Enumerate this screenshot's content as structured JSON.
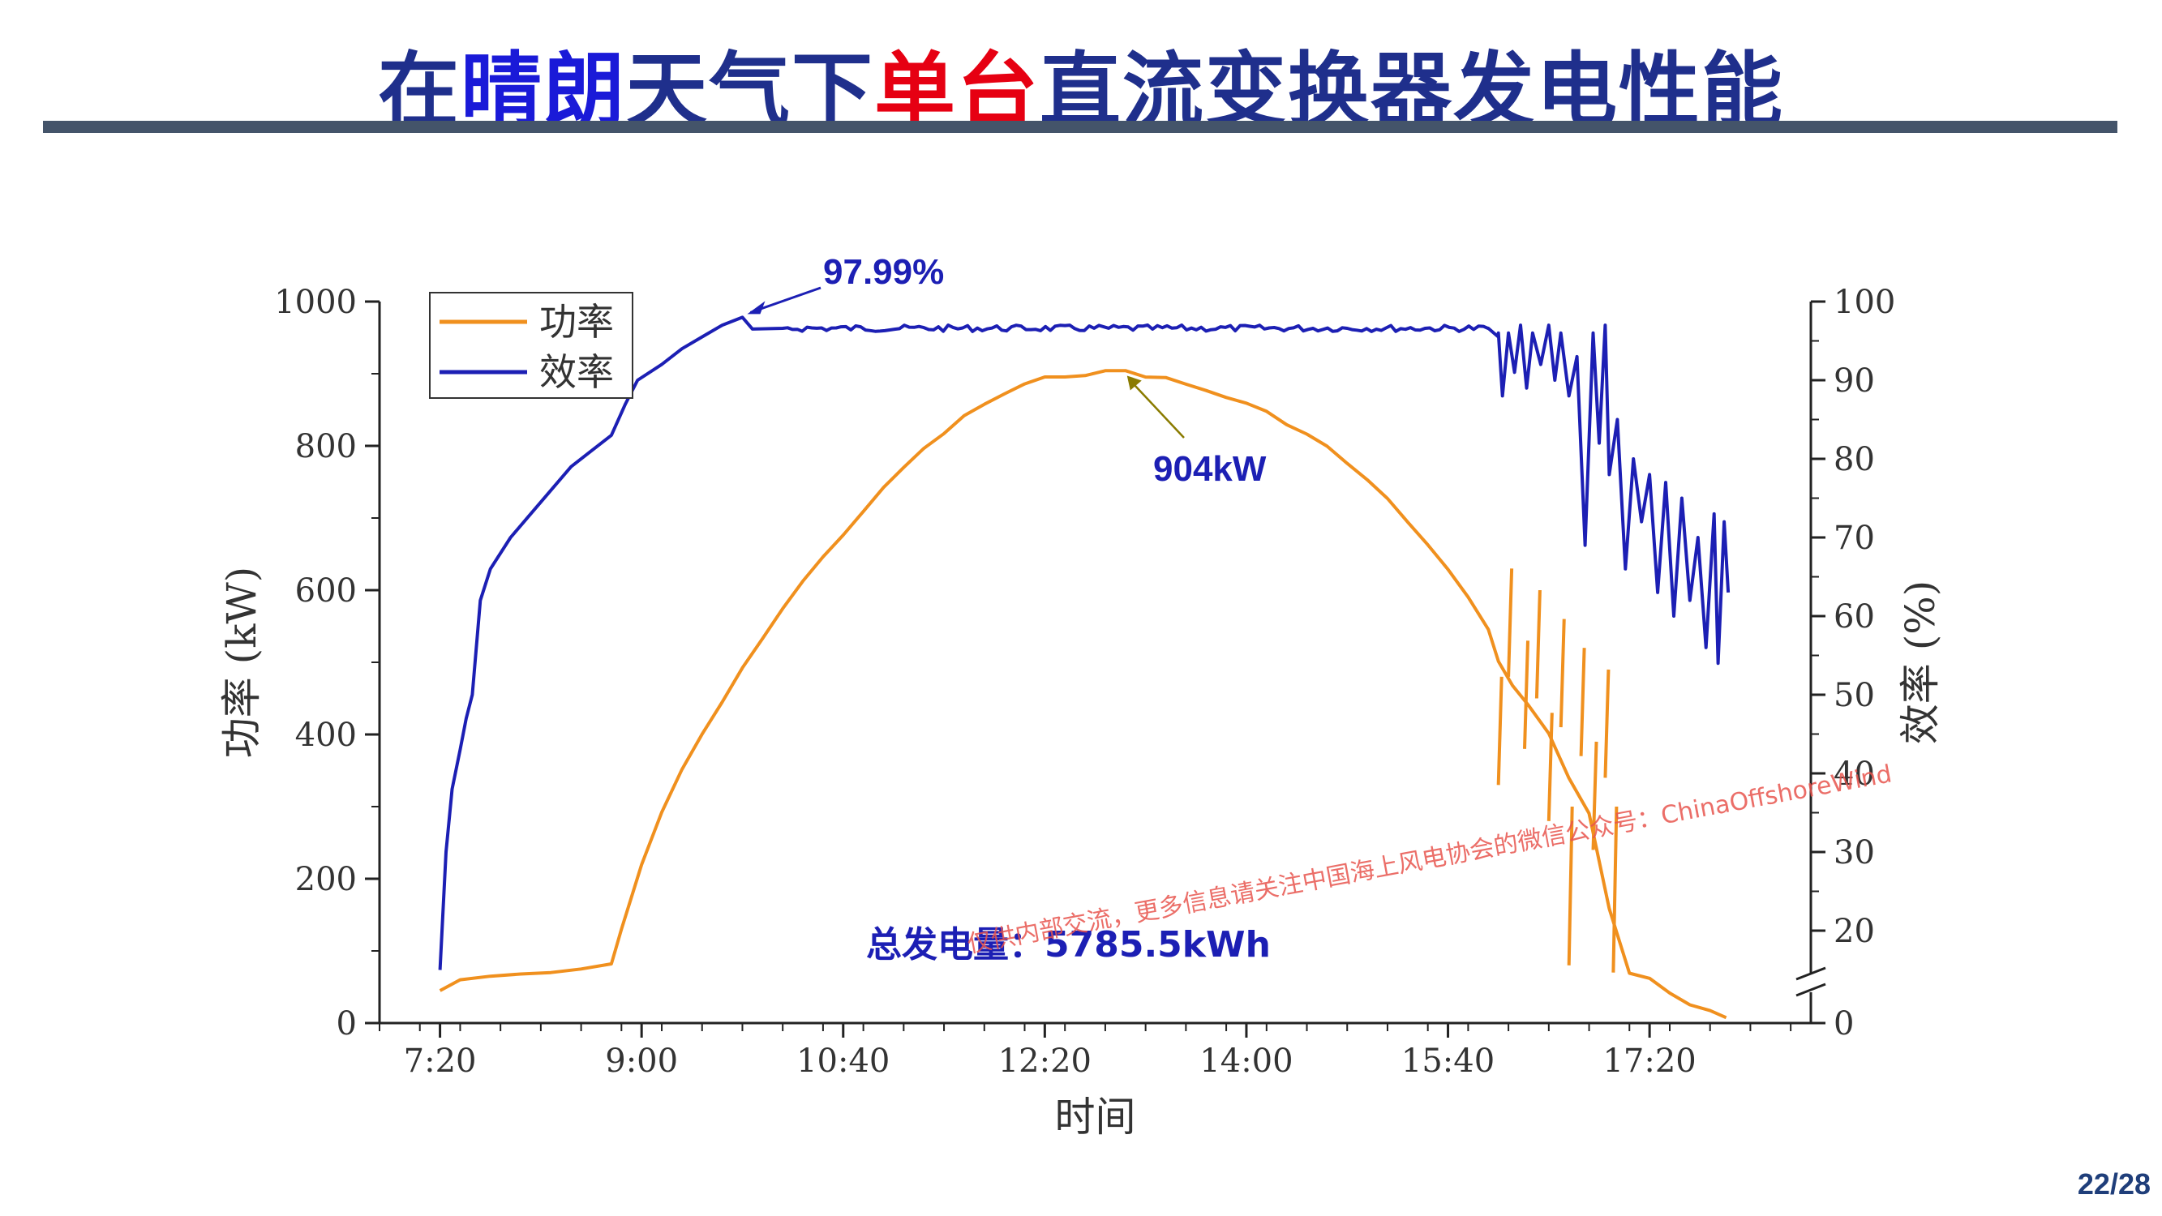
{
  "slide": {
    "title_parts": [
      {
        "text": "在",
        "color": "#1f2f8c"
      },
      {
        "text": "晴朗",
        "color": "#1a1ad8"
      },
      {
        "text": "天气下",
        "color": "#1f2f8c"
      },
      {
        "text": "单台",
        "color": "#e60012"
      },
      {
        "text": "直流变换器发电性能",
        "color": "#1f2f8c"
      }
    ],
    "page_number": "22/28",
    "watermark": "仅供内部交流，更多信息请关注中国海上风电协会的微信公众号：ChinaOffshoreWind"
  },
  "chart_data": {
    "type": "line",
    "xlabel": "时间",
    "ylabel_left": "功率 (kW)",
    "ylabel_right": "效率 (%)",
    "x_unit": "time of day",
    "xlim": [
      "6:50",
      "18:40"
    ],
    "x_ticks": [
      "7:20",
      "9:00",
      "10:40",
      "12:20",
      "14:00",
      "15:40",
      "17:20"
    ],
    "ylim_left": [
      0,
      1000
    ],
    "y_ticks_left": [
      0,
      200,
      400,
      600,
      800,
      1000
    ],
    "y_ticks_right": [
      0,
      20,
      30,
      40,
      50,
      60,
      70,
      80,
      90,
      100
    ],
    "right_axis_break": "between 0 and 20",
    "legend": {
      "position": "top-left",
      "entries": [
        "功率",
        "效率"
      ]
    },
    "series": [
      {
        "name": "功率",
        "color": "#f0901e",
        "axis": "left",
        "points": [
          [
            "7:20",
            45
          ],
          [
            "7:30",
            60
          ],
          [
            "7:45",
            65
          ],
          [
            "8:00",
            68
          ],
          [
            "8:15",
            70
          ],
          [
            "8:30",
            75
          ],
          [
            "8:45",
            82
          ],
          [
            "8:50",
            130
          ],
          [
            "9:00",
            220
          ],
          [
            "9:10",
            290
          ],
          [
            "9:20",
            350
          ],
          [
            "9:30",
            400
          ],
          [
            "9:40",
            445
          ],
          [
            "9:50",
            490
          ],
          [
            "10:00",
            535
          ],
          [
            "10:10",
            575
          ],
          [
            "10:20",
            612
          ],
          [
            "10:30",
            645
          ],
          [
            "10:40",
            678
          ],
          [
            "10:50",
            710
          ],
          [
            "11:00",
            740
          ],
          [
            "11:10",
            770
          ],
          [
            "11:20",
            795
          ],
          [
            "11:30",
            818
          ],
          [
            "11:40",
            840
          ],
          [
            "11:50",
            858
          ],
          [
            "12:00",
            872
          ],
          [
            "12:10",
            884
          ],
          [
            "12:20",
            893
          ],
          [
            "12:30",
            898
          ],
          [
            "12:40",
            900
          ],
          [
            "12:50",
            902
          ],
          [
            "13:00",
            904
          ],
          [
            "13:10",
            898
          ],
          [
            "13:20",
            893
          ],
          [
            "13:30",
            885
          ],
          [
            "13:40",
            877
          ],
          [
            "13:50",
            868
          ],
          [
            "14:00",
            858
          ],
          [
            "14:10",
            846
          ],
          [
            "14:20",
            832
          ],
          [
            "14:30",
            816
          ],
          [
            "14:40",
            798
          ],
          [
            "14:50",
            776
          ],
          [
            "15:00",
            752
          ],
          [
            "15:10",
            725
          ],
          [
            "15:20",
            696
          ],
          [
            "15:30",
            662
          ],
          [
            "15:40",
            628
          ],
          [
            "15:50",
            588
          ],
          [
            "16:00",
            548
          ],
          [
            "16:05",
            500
          ],
          [
            "16:12",
            470
          ],
          [
            "16:20",
            440
          ],
          [
            "16:30",
            400
          ],
          [
            "16:40",
            340
          ],
          [
            "16:50",
            290
          ],
          [
            "17:00",
            160
          ],
          [
            "17:10",
            70
          ],
          [
            "17:20",
            60
          ],
          [
            "17:30",
            40
          ],
          [
            "17:40",
            25
          ],
          [
            "17:50",
            15
          ],
          [
            "17:58",
            5
          ]
        ],
        "drops": [
          [
            "16:05",
            330
          ],
          [
            "16:10",
            480
          ],
          [
            "16:18",
            380
          ],
          [
            "16:24",
            450
          ],
          [
            "16:30",
            280
          ],
          [
            "16:36",
            410
          ],
          [
            "16:40",
            80
          ],
          [
            "16:46",
            370
          ],
          [
            "16:52",
            240
          ],
          [
            "16:58",
            340
          ],
          [
            "17:02",
            70
          ]
        ]
      },
      {
        "name": "效率",
        "color": "#1c1fb4",
        "axis": "right",
        "points": [
          [
            "7:20",
            15
          ],
          [
            "7:23",
            30
          ],
          [
            "7:26",
            38
          ],
          [
            "7:30",
            43
          ],
          [
            "7:33",
            47
          ],
          [
            "7:36",
            50
          ],
          [
            "7:40",
            62
          ],
          [
            "7:45",
            66
          ],
          [
            "7:55",
            70
          ],
          [
            "8:05",
            73
          ],
          [
            "8:15",
            76
          ],
          [
            "8:25",
            79
          ],
          [
            "8:35",
            81
          ],
          [
            "8:45",
            83
          ],
          [
            "8:52",
            87
          ],
          [
            "8:58",
            90
          ],
          [
            "9:10",
            92
          ],
          [
            "9:20",
            94
          ],
          [
            "9:30",
            95.5
          ],
          [
            "9:40",
            97
          ],
          [
            "9:50",
            98
          ],
          [
            "9:55",
            96.5
          ],
          [
            "10:10",
            96.6
          ],
          [
            "16:00",
            96.6
          ],
          [
            "16:05",
            95.5
          ]
        ],
        "oscillation": [
          [
            "16:05",
            96
          ],
          [
            "16:07",
            88
          ],
          [
            "16:10",
            96
          ],
          [
            "16:13",
            91
          ],
          [
            "16:16",
            97
          ],
          [
            "16:19",
            89
          ],
          [
            "16:22",
            96
          ],
          [
            "16:26",
            92
          ],
          [
            "16:30",
            97
          ],
          [
            "16:33",
            90
          ],
          [
            "16:36",
            96
          ],
          [
            "16:40",
            88
          ],
          [
            "16:44",
            93
          ],
          [
            "16:48",
            69
          ],
          [
            "16:52",
            96
          ],
          [
            "16:55",
            82
          ],
          [
            "16:58",
            97
          ],
          [
            "17:00",
            78
          ],
          [
            "17:04",
            85
          ],
          [
            "17:08",
            66
          ],
          [
            "17:12",
            80
          ],
          [
            "17:16",
            72
          ],
          [
            "17:20",
            78
          ],
          [
            "17:24",
            63
          ],
          [
            "17:28",
            77
          ],
          [
            "17:32",
            60
          ],
          [
            "17:36",
            75
          ],
          [
            "17:40",
            62
          ],
          [
            "17:44",
            70
          ],
          [
            "17:48",
            56
          ],
          [
            "17:52",
            73
          ],
          [
            "17:54",
            54
          ],
          [
            "17:57",
            72
          ],
          [
            "17:59",
            63
          ]
        ]
      }
    ],
    "annotations": [
      {
        "text": "97.99%",
        "at": [
          "9:50",
          98
        ],
        "series": "效率"
      },
      {
        "text": "904kW",
        "at": [
          "13:00",
          904
        ],
        "series": "功率"
      },
      {
        "text": "总发电量：5785.5kWh",
        "at": [
          "11:40",
          100
        ]
      }
    ]
  }
}
